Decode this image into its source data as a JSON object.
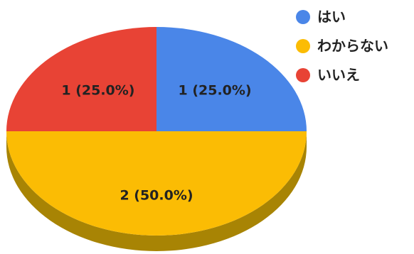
{
  "chart_data": {
    "type": "pie",
    "style": "3d",
    "legend": "top-right",
    "slices": [
      {
        "name": "はい",
        "value": 1,
        "label": "1 (25.0%)",
        "color": "#4a86e8",
        "shadow": "#3a6bbd"
      },
      {
        "name": "わからない",
        "value": 2,
        "label": "2 (50.0%)",
        "color": "#fbbc04",
        "shadow": "#a88404"
      },
      {
        "name": "いいえ",
        "value": 1,
        "label": "1 (25.0%)",
        "color": "#e84335",
        "shadow": "#b03228"
      }
    ]
  }
}
